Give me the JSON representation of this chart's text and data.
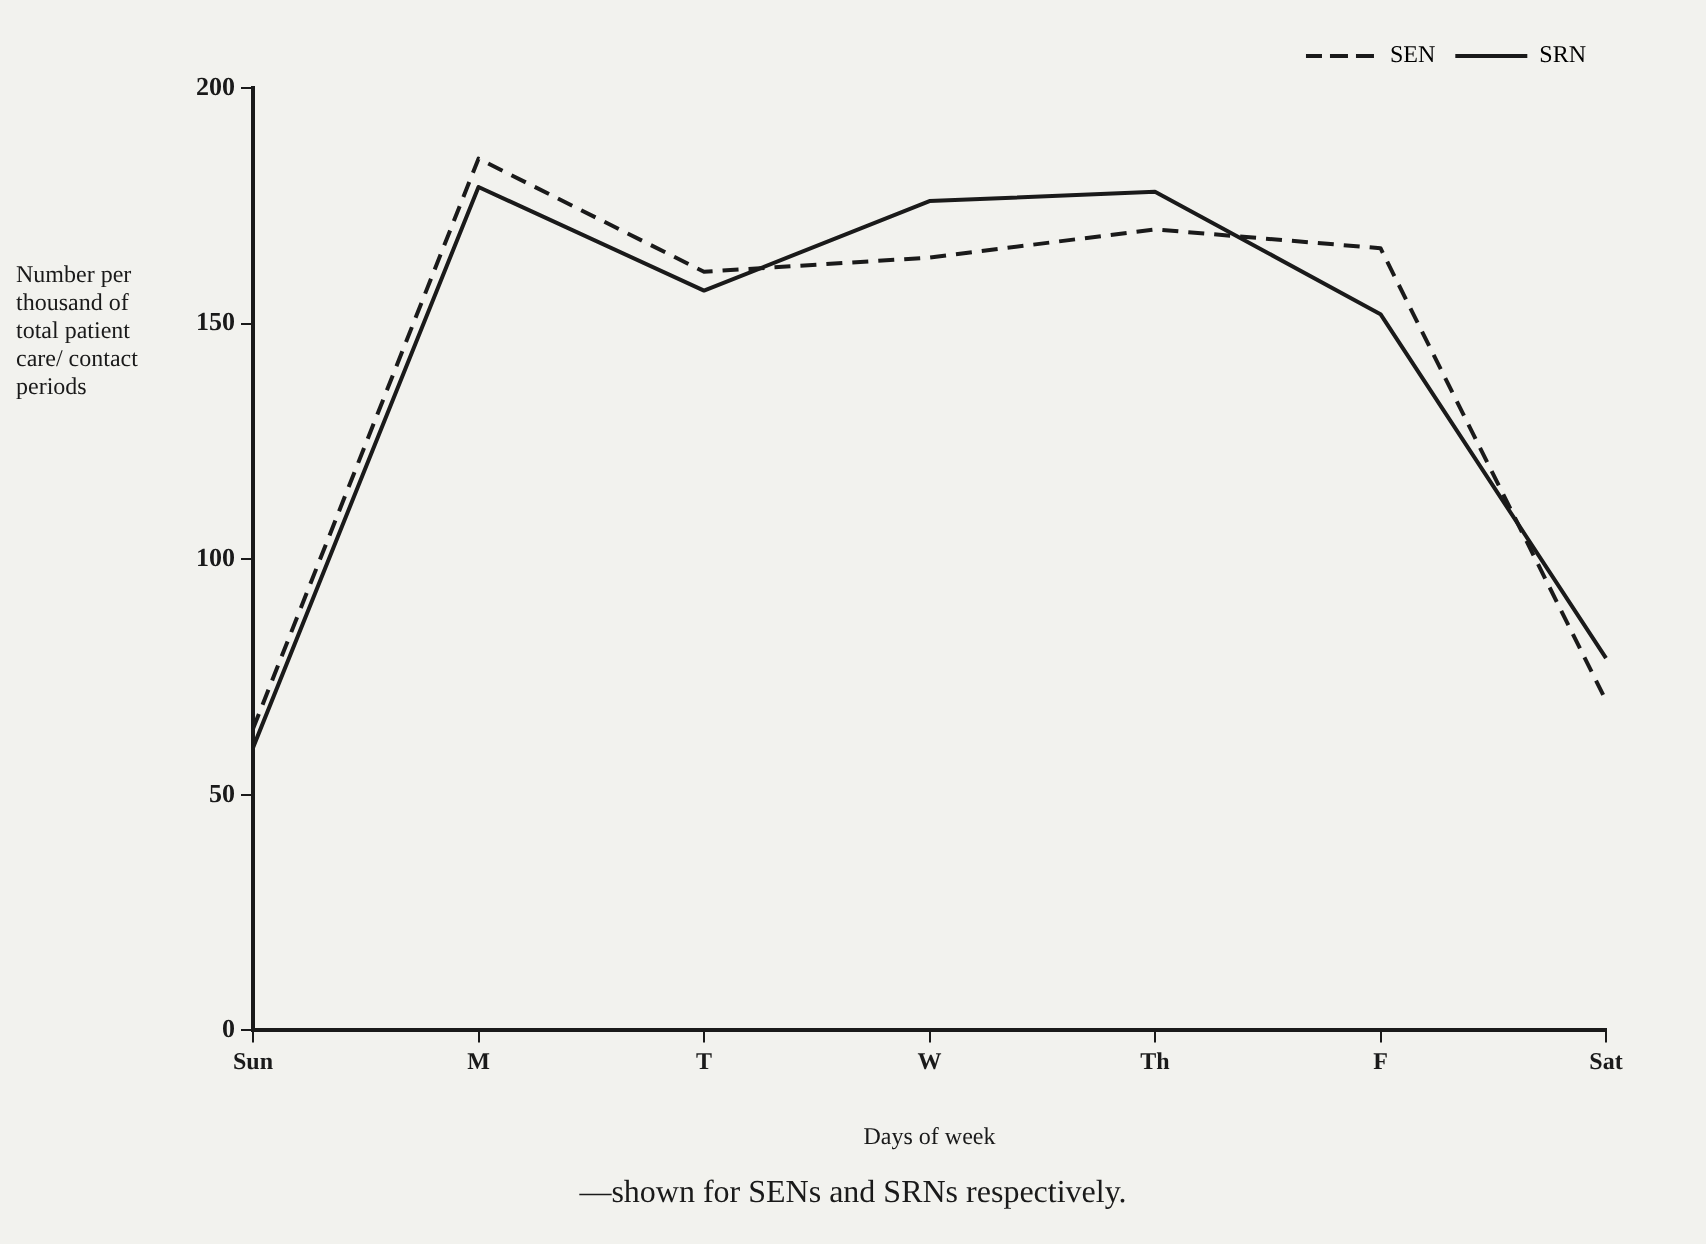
{
  "chart_data": {
    "type": "line",
    "xlabel": "Days of week",
    "ylabel": "Number per thousand of total patient care/ contact periods",
    "categories": [
      "Sun",
      "M",
      "T",
      "W",
      "Th",
      "F",
      "Sat"
    ],
    "series": [
      {
        "name": "SEN",
        "color": "#1a1a1a",
        "line_style": "dashed",
        "values": [
          64,
          185,
          161,
          164,
          170,
          166,
          70
        ]
      },
      {
        "name": "SRN",
        "color": "#1a1a1a",
        "line_style": "solid",
        "values": [
          60,
          179,
          157,
          176,
          178,
          152,
          79
        ]
      }
    ],
    "ylim": [
      0,
      200
    ],
    "yticks": [
      0,
      50,
      100,
      150,
      200
    ],
    "grid": false,
    "legend": "top right",
    "marker": "none",
    "annotations": [
      "—shown for SENs and SRNs respectively."
    ]
  }
}
